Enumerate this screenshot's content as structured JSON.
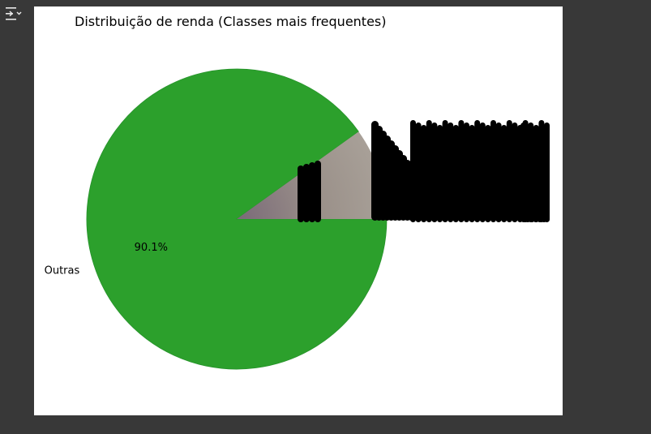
{
  "ui": {
    "output_toggle_icon": "collapse-output-icon"
  },
  "chart_data": {
    "type": "pie",
    "title": "Distribuição de renda (Classes mais frequentes)",
    "slices": [
      {
        "label": "Outras",
        "value": 90.1,
        "pct_label": "90.1%",
        "color": "#2ca02c"
      },
      {
        "label": "",
        "value": 9.9,
        "pct_label": "",
        "color": "#a59d94",
        "note_inner_color": "#7a6a78"
      }
    ],
    "start_angle_deg": 0,
    "direction": "clockwise",
    "legend": "none"
  }
}
